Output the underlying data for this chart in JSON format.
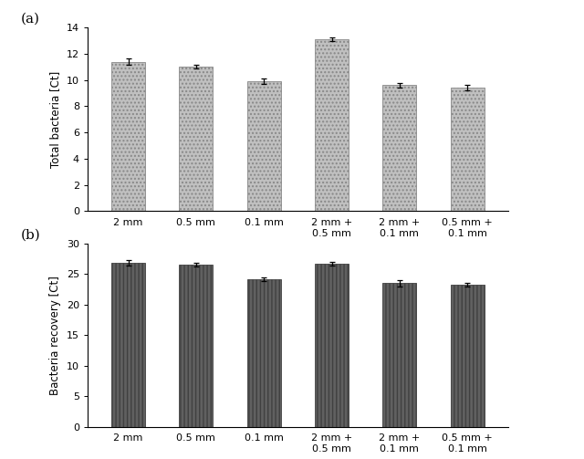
{
  "panel_a": {
    "title": "(a)",
    "ylabel": "Total bacteria [Ct]",
    "categories_line1": [
      "2 mm",
      "0.5 mm",
      "0.1 mm",
      "2 mm +",
      "2 mm +",
      "0.5 mm +"
    ],
    "categories_line2": [
      "",
      "",
      "",
      "0.5 mm",
      "0.1 mm",
      "0.1 mm"
    ],
    "values": [
      11.4,
      11.0,
      9.9,
      13.1,
      9.6,
      9.4
    ],
    "errors": [
      0.25,
      0.15,
      0.2,
      0.15,
      0.15,
      0.2
    ],
    "ylim": [
      0,
      14
    ],
    "yticks": [
      0,
      2,
      4,
      6,
      8,
      10,
      12,
      14
    ],
    "bar_color": "#c0c0c0",
    "bar_edgecolor": "#888888",
    "hatch": "....",
    "error_color": "black"
  },
  "panel_b": {
    "title": "(b)",
    "ylabel": "Bacteria recovery [Ct]",
    "categories_line1": [
      "2 mm",
      "0.5 mm",
      "0.1 mm",
      "2 mm +",
      "2 mm +",
      "0.5 mm +"
    ],
    "categories_line2": [
      "",
      "",
      "",
      "0.5 mm",
      "0.1 mm",
      "0.1 mm"
    ],
    "values": [
      26.8,
      26.5,
      24.1,
      26.6,
      23.5,
      23.2
    ],
    "errors": [
      0.5,
      0.3,
      0.3,
      0.3,
      0.5,
      0.3
    ],
    "ylim": [
      0,
      30
    ],
    "yticks": [
      0,
      5,
      10,
      15,
      20,
      25,
      30
    ],
    "bar_color": "#606060",
    "bar_edgecolor": "#404040",
    "hatch": "||||",
    "error_color": "black"
  },
  "figure_bg": "#ffffff",
  "fontsize_label": 8.5,
  "fontsize_tick": 8,
  "fontsize_panel": 11,
  "bar_width": 0.5
}
